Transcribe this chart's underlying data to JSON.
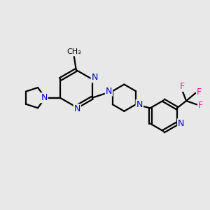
{
  "background_color": "#e8e8e8",
  "bond_color": "#000000",
  "nitrogen_color": "#0000cc",
  "fluorine_color": "#ff1493",
  "figsize": [
    3.0,
    3.0
  ],
  "dpi": 100,
  "xlim": [
    0,
    10
  ],
  "ylim": [
    0,
    10
  ]
}
